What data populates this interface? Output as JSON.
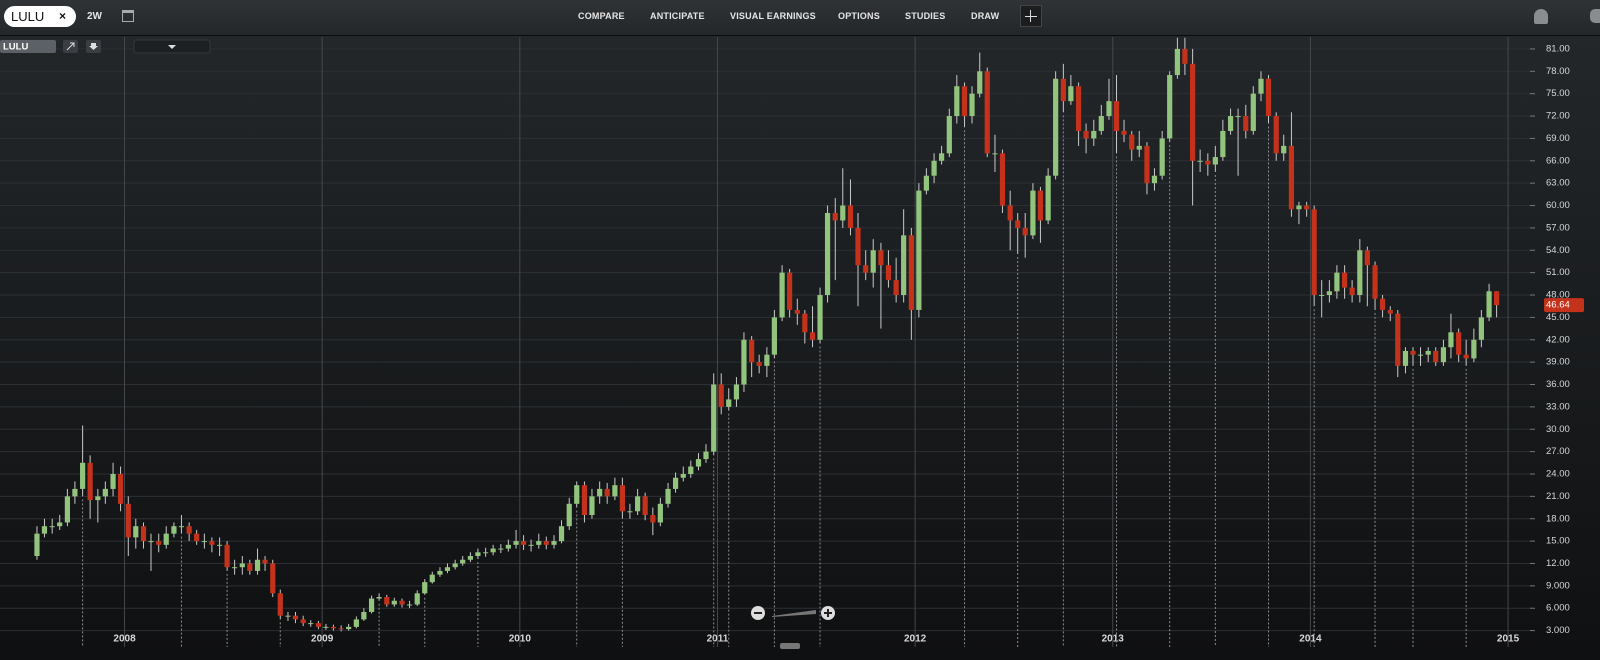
{
  "toolbar": {
    "symbol": "LULU",
    "clear": "×",
    "interval": "2W",
    "menu": [
      "COMPARE",
      "ANTICIPATE",
      "VISUAL EARNINGS",
      "OPTIONS",
      "STUDIES",
      "DRAW"
    ]
  },
  "chart_data": {
    "type": "candlestick",
    "title": "LULU",
    "up_color": "#93c47d",
    "down_color": "#c4321b",
    "grid": true,
    "xlim": [
      2007.37,
      2015.111
    ],
    "ylim": [
      0.8,
      82.6
    ],
    "xticks": [
      2008,
      2009,
      2010,
      2011,
      2012,
      2013,
      2014,
      2015
    ],
    "yticks": [
      {
        "value": 3,
        "label": "3.000"
      },
      {
        "value": 6,
        "label": "6.000"
      },
      {
        "value": 9,
        "label": "9.000"
      },
      {
        "value": 12,
        "label": "12.00"
      },
      {
        "value": 15,
        "label": "15.00"
      },
      {
        "value": 18,
        "label": "18.00"
      },
      {
        "value": 21,
        "label": "21.00"
      },
      {
        "value": 24,
        "label": "24.00"
      },
      {
        "value": 27,
        "label": "27.00"
      },
      {
        "value": 30,
        "label": "30.00"
      },
      {
        "value": 33,
        "label": "33.00"
      },
      {
        "value": 36,
        "label": "36.00"
      },
      {
        "value": 39,
        "label": "39.00"
      },
      {
        "value": 42,
        "label": "42.00"
      },
      {
        "value": 45,
        "label": "45.00"
      },
      {
        "value": 48,
        "label": "48.00"
      },
      {
        "value": 51,
        "label": "51.00"
      },
      {
        "value": 54,
        "label": "54.00"
      },
      {
        "value": 57,
        "label": "57.00"
      },
      {
        "value": 60,
        "label": "60.00"
      },
      {
        "value": 63,
        "label": "63.00"
      },
      {
        "value": 66,
        "label": "66.00"
      },
      {
        "value": 69,
        "label": "69.00"
      },
      {
        "value": 72,
        "label": "72.00"
      },
      {
        "value": 75,
        "label": "75.00"
      },
      {
        "value": 78,
        "label": "78.00"
      },
      {
        "value": 81,
        "label": "81.00"
      }
    ],
    "last_price": 46.64,
    "x": [
      2007.557,
      2007.595,
      2007.634,
      2007.672,
      2007.711,
      2007.749,
      2007.788,
      2007.826,
      2007.865,
      2007.903,
      2007.942,
      2007.98,
      2008.019,
      2008.057,
      2008.096,
      2008.134,
      2008.173,
      2008.211,
      2008.25,
      2008.288,
      2008.327,
      2008.365,
      2008.404,
      2008.442,
      2008.481,
      2008.519,
      2008.557,
      2008.596,
      2008.634,
      2008.673,
      2008.711,
      2008.75,
      2008.788,
      2008.827,
      2008.865,
      2008.904,
      2008.942,
      2008.981,
      2009.019,
      2009.057,
      2009.096,
      2009.134,
      2009.173,
      2009.211,
      2009.25,
      2009.288,
      2009.327,
      2009.365,
      2009.404,
      2009.442,
      2009.481,
      2009.519,
      2009.557,
      2009.596,
      2009.634,
      2009.673,
      2009.711,
      2009.75,
      2009.788,
      2009.827,
      2009.865,
      2009.904,
      2009.942,
      2009.981,
      2010.019,
      2010.057,
      2010.096,
      2010.134,
      2010.173,
      2010.211,
      2010.25,
      2010.288,
      2010.327,
      2010.365,
      2010.404,
      2010.442,
      2010.481,
      2010.519,
      2010.557,
      2010.596,
      2010.634,
      2010.673,
      2010.711,
      2010.75,
      2010.788,
      2010.827,
      2010.865,
      2010.904,
      2010.942,
      2010.981,
      2011.019,
      2011.057,
      2011.096,
      2011.134,
      2011.173,
      2011.211,
      2011.25,
      2011.288,
      2011.327,
      2011.365,
      2011.404,
      2011.442,
      2011.481,
      2011.519,
      2011.557,
      2011.596,
      2011.634,
      2011.673,
      2011.711,
      2011.75,
      2011.788,
      2011.827,
      2011.865,
      2011.904,
      2011.942,
      2011.981,
      2012.019,
      2012.057,
      2012.096,
      2012.134,
      2012.173,
      2012.211,
      2012.25,
      2012.288,
      2012.327,
      2012.365,
      2012.404,
      2012.442,
      2012.481,
      2012.519,
      2012.557,
      2012.596,
      2012.634,
      2012.673,
      2012.711,
      2012.75,
      2012.788,
      2012.827,
      2012.865,
      2012.904,
      2012.942,
      2012.981,
      2013.019,
      2013.057,
      2013.096,
      2013.134,
      2013.173,
      2013.211,
      2013.25,
      2013.288,
      2013.327,
      2013.365,
      2013.404,
      2013.442,
      2013.481,
      2013.519,
      2013.557,
      2013.596,
      2013.634,
      2013.673,
      2013.711,
      2013.75,
      2013.788,
      2013.827,
      2013.865,
      2013.904,
      2013.942,
      2013.981,
      2014.019,
      2014.057,
      2014.096,
      2014.134,
      2014.173,
      2014.211,
      2014.25,
      2014.288,
      2014.327,
      2014.365,
      2014.404,
      2014.442,
      2014.481,
      2014.519,
      2014.557,
      2014.596,
      2014.634,
      2014.673,
      2014.711,
      2014.75,
      2014.788,
      2014.827,
      2014.865,
      2014.904,
      2014.942
    ],
    "open": [
      13,
      16,
      17,
      17,
      17.5,
      21,
      22,
      25.5,
      20.5,
      21,
      22,
      24,
      20,
      15.5,
      17,
      15,
      15,
      14.5,
      16,
      17,
      17,
      16,
      15,
      15,
      14.5,
      14.5,
      11.5,
      11.5,
      12,
      11,
      12.5,
      12,
      8,
      5,
      5,
      4.5,
      4,
      4,
      3.5,
      3.5,
      3.3,
      3.2,
      3.5,
      4.5,
      5.5,
      7.3,
      7.5,
      6.5,
      7,
      6.5,
      6.5,
      8,
      9.5,
      10.5,
      11,
      11.5,
      12,
      12.5,
      13,
      13.5,
      13.5,
      14,
      14,
      14.5,
      15,
      14.5,
      14.5,
      15,
      14.5,
      15,
      17,
      20,
      22.5,
      18.5,
      21,
      22,
      21,
      22.5,
      19,
      19,
      21,
      18.5,
      17.5,
      20,
      22,
      23.5,
      24,
      25,
      26,
      27,
      36,
      33,
      34,
      36,
      42,
      39,
      38.5,
      40,
      45,
      51,
      46,
      45.5,
      43,
      42,
      48,
      59,
      58,
      60,
      57,
      52,
      51,
      54,
      52,
      50,
      48,
      56,
      46,
      62,
      64,
      66,
      67,
      72,
      76,
      72,
      75,
      78,
      67,
      67,
      60,
      58,
      57,
      56,
      62,
      58,
      64,
      77,
      74,
      76,
      70,
      69,
      70,
      72,
      74,
      70,
      69.5,
      67.5,
      68,
      63,
      64,
      69,
      77.5,
      81,
      79,
      66,
      66,
      65.5,
      66.5,
      70,
      72,
      72,
      70,
      75,
      77,
      72,
      67,
      68,
      59.5,
      60,
      59.5,
      48,
      48,
      48.5,
      51,
      49,
      48,
      54,
      52,
      47.5,
      46,
      45.5,
      38.5,
      40.5,
      40,
      40,
      40.5,
      39,
      41,
      43,
      40,
      39.5,
      42,
      45,
      48.5
    ],
    "high": [
      17,
      18,
      18,
      18.5,
      22,
      23,
      30.5,
      26.5,
      22,
      23,
      25.5,
      25,
      21,
      18,
      17.5,
      16,
      16,
      17,
      17.5,
      18.5,
      17.5,
      16.5,
      16,
      15.5,
      15.5,
      15,
      12.5,
      13,
      12.5,
      14,
      13,
      12.5,
      8.5,
      5.5,
      5.5,
      5,
      4.4,
      4.3,
      3.9,
      3.8,
      3.7,
      3.9,
      4.9,
      6,
      7.7,
      8,
      7.8,
      7.4,
      7.3,
      7,
      8.4,
      9.9,
      10.9,
      11.5,
      12,
      12.5,
      13,
      13.5,
      14,
      14.1,
      14.5,
      14.6,
      15.2,
      16.5,
      15.8,
      15.2,
      16,
      15.6,
      15.8,
      17.8,
      20.8,
      23,
      23,
      22,
      23,
      22.8,
      23.5,
      23.5,
      20,
      22,
      21.5,
      19.5,
      20.8,
      22.8,
      24.2,
      25,
      25.8,
      26.8,
      28,
      37.5,
      37.5,
      35.5,
      37,
      43,
      42.5,
      40,
      41,
      46,
      52,
      51.5,
      47.5,
      46,
      46.5,
      49,
      60,
      61,
      65,
      63.5,
      59,
      54,
      55.5,
      55,
      54,
      53,
      59.5,
      57,
      63,
      65,
      67,
      68,
      73,
      77.5,
      76.5,
      76,
      80.5,
      78.5,
      69.5,
      67.5,
      62,
      59,
      59,
      63,
      62.5,
      65,
      78,
      79,
      77.5,
      76.5,
      71,
      71.5,
      73.5,
      77,
      77.5,
      71.5,
      70,
      70,
      68.5,
      65,
      70,
      78,
      82.5,
      82.5,
      81,
      67.5,
      67,
      68,
      71.5,
      73,
      73,
      73.5,
      76,
      78,
      77.5,
      72.5,
      69.5,
      72.5,
      60.5,
      60.5,
      60,
      50,
      50,
      52,
      52,
      50,
      55.5,
      54.5,
      52.5,
      48,
      46.5,
      46,
      41,
      41,
      41,
      41,
      41,
      42,
      45.5,
      43.5,
      42,
      43.5,
      46,
      49.5,
      48.5
    ],
    "low": [
      12.5,
      15.5,
      16,
      16.5,
      17,
      20,
      21,
      18,
      17.5,
      20,
      21,
      19,
      13,
      14,
      14,
      11,
      13.5,
      14,
      15.5,
      16,
      15,
      14.5,
      14,
      13.5,
      13,
      11,
      10.5,
      10.5,
      10.5,
      10.5,
      11,
      7.5,
      4.5,
      4.3,
      4,
      3.6,
      3.5,
      3.2,
      3.1,
      3,
      2.9,
      3,
      3.3,
      4.3,
      5.3,
      7,
      6.2,
      6.2,
      6.1,
      6,
      6.3,
      7.8,
      9.3,
      10.2,
      10.7,
      11.2,
      11.7,
      12.2,
      12.6,
      12.9,
      13.1,
      13.4,
      13.6,
      14,
      13.8,
      13.6,
      14,
      13.9,
      14,
      14.7,
      16.5,
      19.5,
      17.5,
      18,
      20,
      20,
      20.5,
      18,
      18,
      18.5,
      17.8,
      15.8,
      17,
      19.5,
      21.5,
      23,
      23.5,
      24.5,
      25.5,
      26.5,
      32,
      32.5,
      33,
      35,
      37,
      37.5,
      37,
      39.5,
      44.5,
      45,
      44,
      41.5,
      41,
      41.5,
      47,
      50,
      57,
      56,
      46.5,
      50,
      49,
      43.5,
      49,
      47,
      47,
      42,
      45,
      61.5,
      63,
      65.5,
      66.5,
      71,
      70.5,
      71,
      74.5,
      66.5,
      64.5,
      59,
      54,
      53.5,
      53,
      55.5,
      55,
      57.5,
      63.5,
      72.5,
      73.5,
      68,
      67,
      68,
      69.5,
      71.5,
      67,
      68.5,
      66,
      66.5,
      61.5,
      62,
      63.5,
      68.5,
      77,
      77.5,
      60,
      64.5,
      64,
      64.5,
      66,
      69.5,
      64,
      69,
      69.5,
      74,
      71,
      66,
      66,
      58.5,
      57.5,
      58.5,
      46.5,
      45,
      47,
      47.5,
      47.5,
      47,
      47,
      46.5,
      46,
      45,
      44.5,
      37,
      37.5,
      38.5,
      38.5,
      39,
      38.5,
      38.5,
      39.5,
      39,
      38.5,
      39,
      41,
      44.5,
      45
    ],
    "close": [
      16,
      17,
      17,
      17.5,
      21,
      22,
      25.5,
      20.5,
      21,
      22,
      24,
      20,
      15.5,
      17,
      15,
      15,
      14.5,
      16,
      17,
      17,
      16,
      15,
      15,
      14.5,
      14.5,
      11.5,
      11.5,
      12,
      11,
      12.5,
      12,
      8,
      5,
      5,
      4.5,
      4,
      4,
      3.5,
      3.5,
      3.3,
      3.2,
      3.5,
      4.5,
      5.5,
      7.3,
      7.5,
      6.5,
      7,
      6.5,
      6.5,
      8,
      9.5,
      10.5,
      11,
      11.5,
      12,
      12.5,
      13,
      13.5,
      13.5,
      14,
      14,
      14.5,
      15,
      14.5,
      14.5,
      15,
      14.5,
      15,
      17,
      20,
      22.5,
      18.5,
      21,
      22,
      21,
      22.5,
      19,
      19,
      21,
      18.5,
      17.5,
      20,
      22,
      23.5,
      24,
      25,
      26,
      27,
      36,
      33,
      34,
      36,
      42,
      39,
      38.5,
      40,
      45,
      51,
      46,
      45.5,
      43,
      42,
      48,
      59,
      58,
      60,
      57,
      52,
      51,
      54,
      52,
      50,
      48,
      56,
      46,
      62,
      64,
      66,
      67,
      72,
      76,
      72,
      75,
      78,
      67,
      67,
      60,
      58,
      57,
      56,
      62,
      58,
      64,
      77,
      74,
      76,
      70,
      69,
      70,
      72,
      74,
      70,
      69.5,
      67.5,
      68,
      63,
      64,
      69,
      77.5,
      81,
      79,
      66,
      66,
      65.5,
      66.5,
      70,
      72,
      72,
      70,
      75,
      77,
      72,
      67,
      68,
      59.5,
      60,
      59.5,
      48,
      48,
      48.5,
      51,
      49,
      48,
      54,
      52,
      47.5,
      46,
      45.5,
      38.5,
      40.5,
      40,
      40,
      40.5,
      39,
      41,
      43,
      40,
      39.5,
      42,
      45,
      48.5,
      46.64
    ]
  }
}
